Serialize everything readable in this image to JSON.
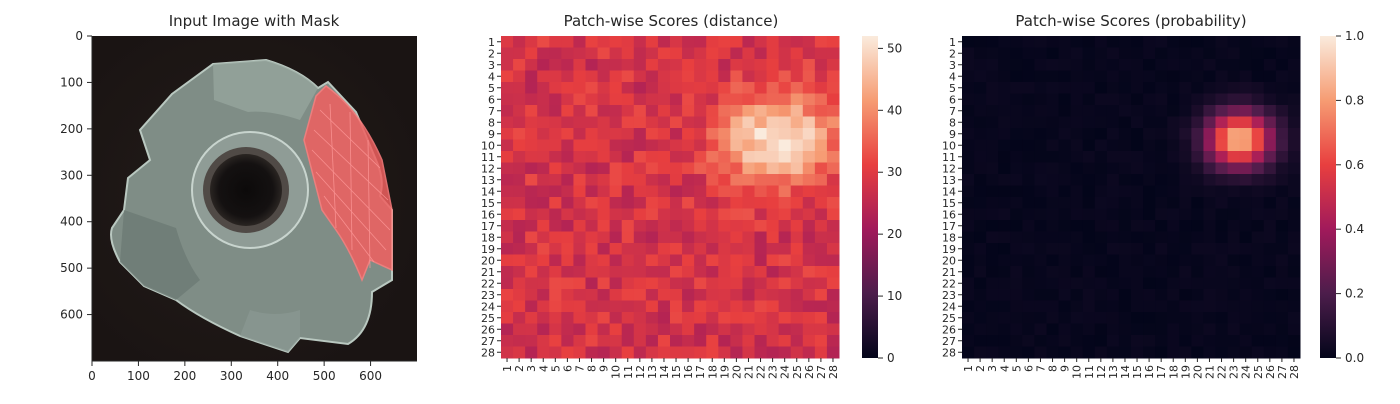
{
  "chart_data": [
    {
      "type": "image",
      "title": "Input Image with Mask",
      "xticks": [
        0,
        100,
        200,
        300,
        400,
        500,
        600
      ],
      "yticks": [
        0,
        100,
        200,
        300,
        400,
        500,
        600
      ],
      "xlim": [
        0,
        700
      ],
      "ylim": [
        700,
        0
      ]
    },
    {
      "type": "heatmap",
      "title": "Patch-wise Scores (distance)",
      "rows": 28,
      "cols": 28,
      "row_labels": [
        "1",
        "2",
        "3",
        "4",
        "5",
        "6",
        "7",
        "8",
        "9",
        "10",
        "11",
        "12",
        "13",
        "14",
        "15",
        "16",
        "17",
        "18",
        "19",
        "20",
        "21",
        "22",
        "23",
        "24",
        "25",
        "26",
        "27",
        "28"
      ],
      "col_labels": [
        "1",
        "2",
        "3",
        "4",
        "5",
        "6",
        "7",
        "8",
        "9",
        "10",
        "11",
        "12",
        "13",
        "14",
        "15",
        "16",
        "17",
        "18",
        "19",
        "20",
        "21",
        "22",
        "23",
        "24",
        "25",
        "26",
        "27",
        "28"
      ],
      "colorbar_ticks": [
        0,
        10,
        20,
        30,
        40,
        50
      ],
      "vmin": 0,
      "vmax": 52,
      "hotspot": {
        "center_col": 23.5,
        "center_row": 9.5,
        "peak": 52,
        "baseline": 28
      }
    },
    {
      "type": "heatmap",
      "title": "Patch-wise Scores (probability)",
      "rows": 28,
      "cols": 28,
      "row_labels": [
        "1",
        "2",
        "3",
        "4",
        "5",
        "6",
        "7",
        "8",
        "9",
        "10",
        "11",
        "12",
        "13",
        "14",
        "15",
        "16",
        "17",
        "18",
        "19",
        "20",
        "21",
        "22",
        "23",
        "24",
        "25",
        "26",
        "27",
        "28"
      ],
      "col_labels": [
        "1",
        "2",
        "3",
        "4",
        "5",
        "6",
        "7",
        "8",
        "9",
        "10",
        "11",
        "12",
        "13",
        "14",
        "15",
        "16",
        "17",
        "18",
        "19",
        "20",
        "21",
        "22",
        "23",
        "24",
        "25",
        "26",
        "27",
        "28"
      ],
      "colorbar_ticks": [
        "0.0",
        "0.2",
        "0.4",
        "0.6",
        "0.8",
        "1.0"
      ],
      "vmin": 0,
      "vmax": 1,
      "hotspot": {
        "center_col": 23.5,
        "center_row": 9.5,
        "peak": 0.85,
        "baseline": 0.0
      }
    }
  ],
  "colormap": [
    "#03051a",
    "#4c1d4b",
    "#a11a5b",
    "#e83f3f",
    "#f69c73",
    "#faebdd"
  ]
}
